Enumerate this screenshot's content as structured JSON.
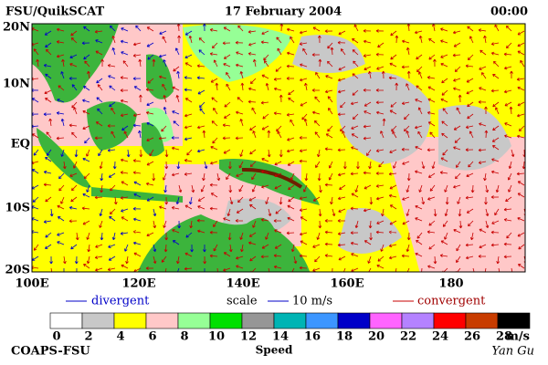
{
  "header": {
    "left": "FSU/QuikSCAT",
    "center": "17 February 2004",
    "right": "00:00"
  },
  "lat_labels": [
    "20N",
    "10N",
    "EQ",
    "10S",
    "20S"
  ],
  "lon_labels": [
    "100E",
    "120E",
    "140E",
    "160E",
    "180"
  ],
  "legend": {
    "divergent": "divergent",
    "scale": "scale",
    "scale_value": "10 m/s",
    "convergent": "convergent"
  },
  "colorbar": {
    "ticks": [
      0,
      2,
      4,
      6,
      8,
      10,
      12,
      14,
      16,
      18,
      20,
      22,
      24,
      26,
      28
    ],
    "unit": "m/s",
    "title": "Speed",
    "colors": [
      "#ffffff",
      "#c8c8c8",
      "#ffff00",
      "#ffc8c8",
      "#96ff96",
      "#00e000",
      "#969696",
      "#00b4b4",
      "#3c96ff",
      "#0000c8",
      "#ff64ff",
      "#b482ff",
      "#ff0000",
      "#c83c00",
      "#000000"
    ]
  },
  "footer": {
    "left": "COAPS-FSU",
    "right": "Yan Gu"
  }
}
